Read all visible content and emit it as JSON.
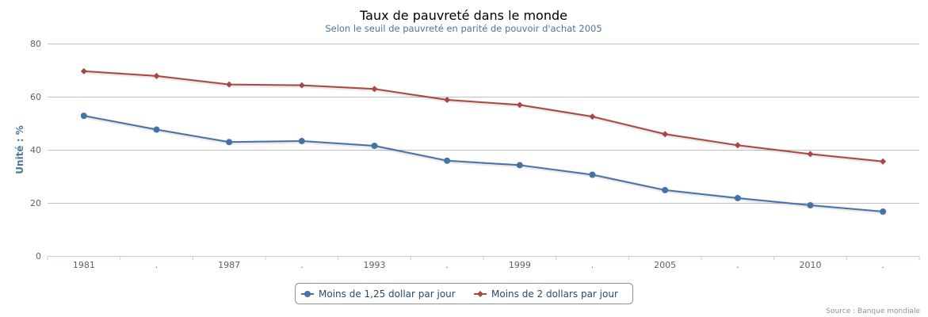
{
  "chart_data": {
    "type": "line",
    "title": "Taux de pauvreté dans le monde",
    "subtitle": "Selon le seuil de pauvreté en parité de pouvoir d'achat 2005",
    "xlabel": "",
    "ylabel": "Unité : %",
    "categories": [
      "1981",
      ".",
      "1987",
      ".",
      "1993",
      ".",
      "1999",
      ".",
      "2005",
      ".",
      "2010",
      "."
    ],
    "ylim": [
      0,
      80
    ],
    "yticks": [
      0,
      20,
      40,
      60,
      80
    ],
    "grid": true,
    "legend": "bottom-center",
    "series": [
      {
        "name": "Moins de 1,25 dollar par jour",
        "color": "#4572a7",
        "marker": "circle",
        "values": [
          52.8,
          47.6,
          42.9,
          43.3,
          41.5,
          35.9,
          34.2,
          30.6,
          24.8,
          21.8,
          19.1,
          16.7
        ]
      },
      {
        "name": "Moins de 2 dollars par jour",
        "color": "#aa4643",
        "marker": "diamond",
        "values": [
          69.6,
          67.8,
          64.6,
          64.3,
          62.9,
          58.8,
          56.9,
          52.5,
          45.9,
          41.7,
          38.4,
          35.6
        ]
      }
    ],
    "credit": "Source : Banque mondiale"
  }
}
